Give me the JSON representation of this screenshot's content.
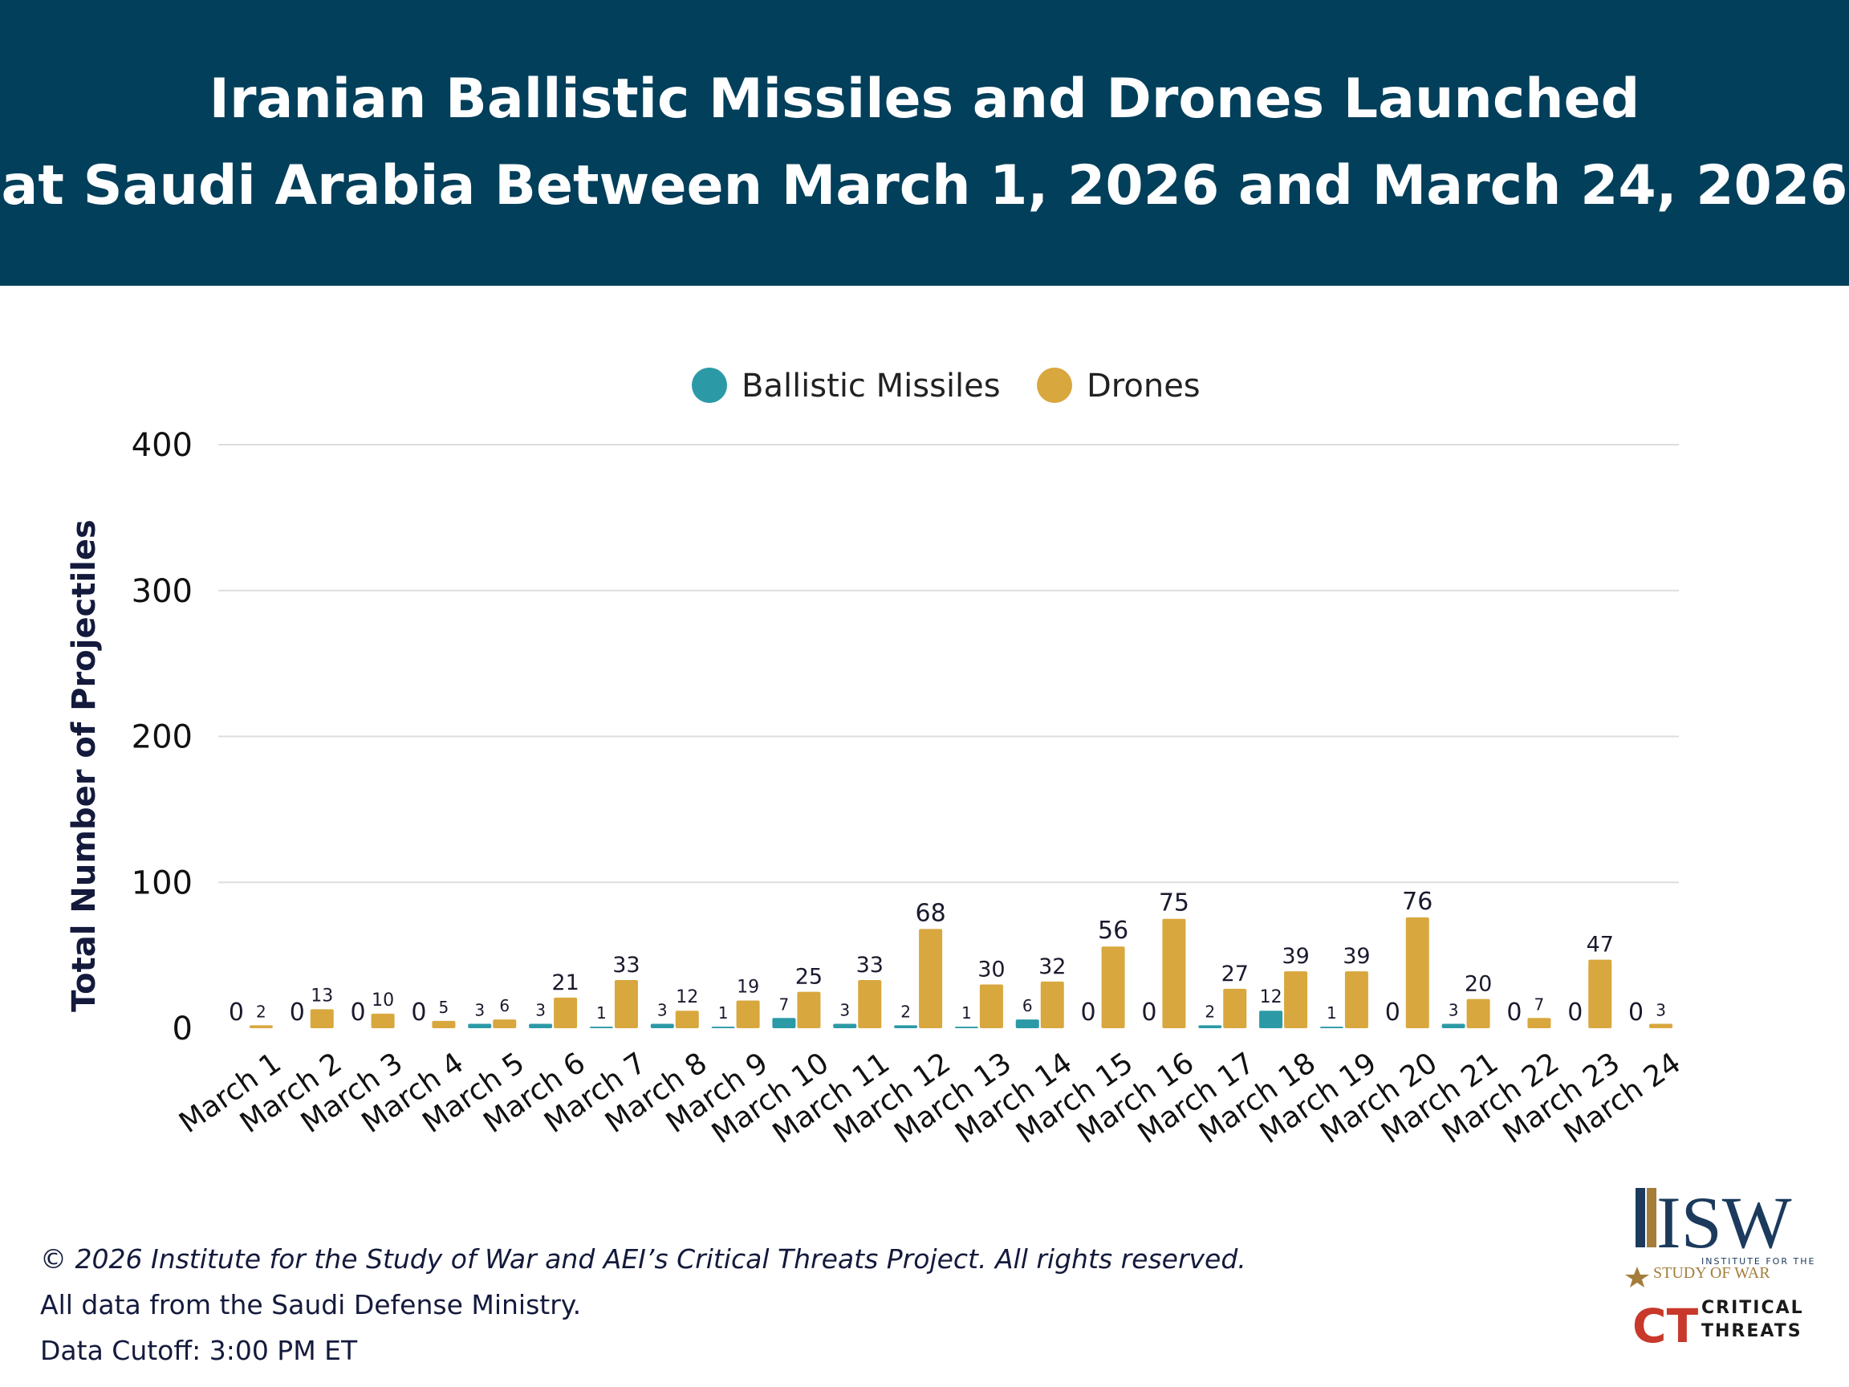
{
  "header": {
    "title_line1": "Iranian Ballistic Missiles and Drones Launched",
    "title_line2": "at Saudi Arabia Between March 1, 2026 and March 24, 2026"
  },
  "colors": {
    "banner": "#023f5b",
    "ballistic": "#2b9aa6",
    "drones": "#d8a73e",
    "isw_navy": "#1b3a5c",
    "isw_gold": "#a47d3b",
    "ct_red": "#c8392b"
  },
  "chart_data": {
    "type": "bar",
    "ylabel": "Total Number of Projectiles",
    "xlabel": "",
    "ylim": [
      0,
      400
    ],
    "yticks": [
      0,
      100,
      200,
      300,
      400
    ],
    "grid": true,
    "legend_position": "top-center",
    "categories": [
      "March 1",
      "March 2",
      "March 3",
      "March 4",
      "March 5",
      "March 6",
      "March 7",
      "March 8",
      "March 9",
      "March 10",
      "March 11",
      "March 12",
      "March 13",
      "March 14",
      "March 15",
      "March 16",
      "March 17",
      "March 18",
      "March 19",
      "March 20",
      "March 21",
      "March 22",
      "March 23",
      "March 24"
    ],
    "series": [
      {
        "name": "Ballistic Missiles",
        "values": [
          0,
          0,
          0,
          0,
          3,
          3,
          1,
          3,
          1,
          7,
          3,
          2,
          1,
          6,
          0,
          0,
          2,
          12,
          1,
          0,
          3,
          0,
          0,
          0
        ]
      },
      {
        "name": "Drones",
        "values": [
          2,
          13,
          10,
          5,
          6,
          21,
          33,
          12,
          19,
          25,
          33,
          68,
          30,
          32,
          56,
          75,
          27,
          39,
          39,
          76,
          20,
          7,
          47,
          3
        ]
      }
    ]
  },
  "footer": {
    "copyright": "© 2026 Institute for the Study of War and AEI’s Critical Threats Project. All rights reserved.",
    "source": "All data from the Saudi Defense Ministry.",
    "cutoff": "Data Cutoff: 3:00 PM ET"
  },
  "logos": {
    "isw_mark": "ISW",
    "isw_sub1": "INSTITUTE FOR THE",
    "isw_sub2": "STUDY OF WAR",
    "ct_mark": "CT",
    "ct_line1": "CRITICAL",
    "ct_line2": "THREATS"
  }
}
